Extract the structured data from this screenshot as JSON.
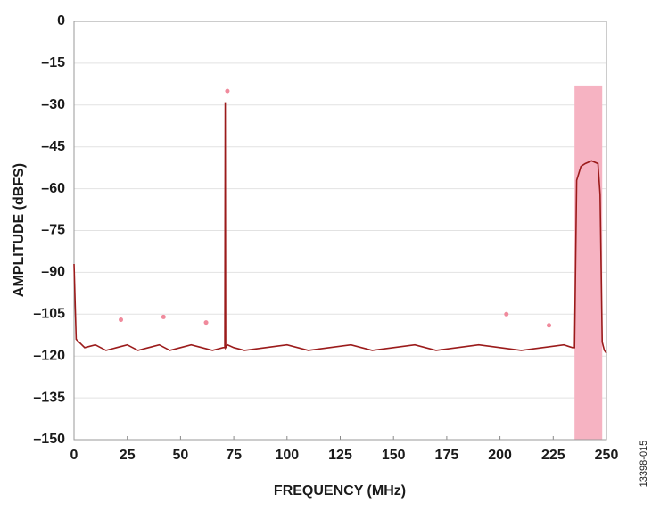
{
  "chart_data": {
    "type": "line",
    "xlabel": "FREQUENCY (MHz)",
    "ylabel": "AMPLITUDE (dBFS)",
    "annotation": "13398-015",
    "x": [
      0,
      1,
      5,
      10,
      15,
      20,
      25,
      30,
      35,
      40,
      45,
      50,
      55,
      60,
      65,
      70,
      70.8,
      71,
      71.2,
      72,
      75,
      80,
      90,
      100,
      110,
      120,
      130,
      140,
      150,
      160,
      170,
      180,
      190,
      200,
      210,
      220,
      230,
      234,
      235,
      236,
      238,
      240,
      243,
      246,
      247,
      248,
      249,
      250
    ],
    "series": [
      {
        "color": "#9b1b1b",
        "style": "line",
        "values": [
          -87,
          -114,
          -117,
          -116,
          -118,
          -117,
          -116,
          -118,
          -117,
          -116,
          -118,
          -117,
          -116,
          -117,
          -118,
          -117,
          -117,
          -29,
          -117,
          -116,
          -117,
          -118,
          -117,
          -116,
          -118,
          -117,
          -116,
          -118,
          -117,
          -116,
          -118,
          -117,
          -116,
          -117,
          -118,
          -117,
          -116,
          -117,
          -117,
          -57,
          -52,
          -51,
          -50,
          -51,
          -62,
          -115,
          -118,
          -119
        ]
      },
      {
        "color": "#f08a9c",
        "style": "marker",
        "x": [
          22,
          42,
          62,
          72,
          203,
          223
        ],
        "values": [
          -107,
          -106,
          -108,
          -25,
          -105,
          -109
        ]
      }
    ],
    "highlight": {
      "x": [
        235,
        248
      ],
      "y": [
        -150,
        -23
      ],
      "color": "#f6b3c2"
    },
    "xlim": [
      0,
      250
    ],
    "xticks": [
      0,
      25,
      50,
      75,
      100,
      125,
      150,
      175,
      200,
      225,
      250
    ],
    "ylim": [
      -150,
      0
    ],
    "yticks": [
      0,
      {
        "value": -15,
        "label": "–15"
      },
      {
        "value": -30,
        "label": "–30"
      },
      {
        "value": -45,
        "label": "–45"
      },
      {
        "value": -60,
        "label": "–60"
      },
      {
        "value": -75,
        "label": "–75"
      },
      {
        "value": -90,
        "label": "–90"
      },
      {
        "value": -105,
        "label": "–105"
      },
      {
        "value": -120,
        "label": "–120"
      },
      {
        "value": -135,
        "label": "–135"
      },
      {
        "value": -150,
        "label": "–150"
      }
    ],
    "grid": true
  }
}
